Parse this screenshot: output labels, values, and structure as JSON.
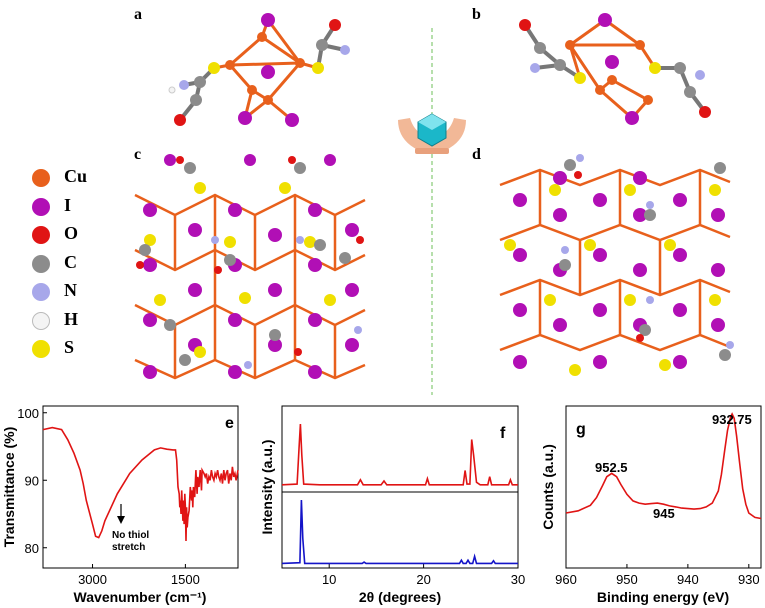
{
  "panels": {
    "a": "a",
    "b": "b",
    "c": "c",
    "d": "d",
    "e": "e",
    "f": "f",
    "g": "g"
  },
  "legend": [
    {
      "label": "Cu",
      "color": "#e8601c"
    },
    {
      "label": "I",
      "color": "#b10fb5"
    },
    {
      "label": "O",
      "color": "#e01414"
    },
    {
      "label": "C",
      "color": "#8c8c8c"
    },
    {
      "label": "N",
      "color": "#a7a7ea"
    },
    {
      "label": "H",
      "color": "#f4f4f4"
    },
    {
      "label": "S",
      "color": "#f0e000"
    }
  ],
  "chart_data": [
    {
      "type": "line",
      "panel": "e",
      "xlabel": "Wavenumber (cm⁻¹)",
      "ylabel": "Transmittance (%)",
      "xlim": [
        3800,
        650
      ],
      "ylim": [
        77,
        101
      ],
      "xticks": [
        3000,
        1500
      ],
      "xtick_labels": [
        "3000",
        "1500"
      ],
      "yticks": [
        80,
        90,
        100
      ],
      "ytick_labels": [
        "80",
        "90",
        "100"
      ],
      "annotation": [
        "No thiol",
        "stretch"
      ],
      "series": [
        {
          "color": "#e01414",
          "x": [
            3800,
            3650,
            3500,
            3400,
            3300,
            3200,
            3150,
            3100,
            3000,
            2950,
            2900,
            2850,
            2800,
            2700,
            2600,
            2400,
            2200,
            2000,
            1900,
            1800,
            1700,
            1660,
            1640,
            1620,
            1600,
            1590,
            1580,
            1570,
            1560,
            1540,
            1530,
            1520,
            1510,
            1500,
            1490,
            1480,
            1470,
            1460,
            1440,
            1420,
            1400,
            1390,
            1380,
            1370,
            1350,
            1330,
            1310,
            1300,
            1280,
            1260,
            1240,
            1230,
            1200,
            1180,
            1160,
            1140,
            1120,
            1100,
            1080,
            1060,
            1040,
            1020,
            1000,
            980,
            960,
            940,
            920,
            900,
            880,
            860,
            840,
            820,
            800,
            780,
            760,
            740,
            720,
            700,
            680,
            650
          ],
          "y": [
            97.5,
            97.8,
            97.5,
            96,
            94,
            91.5,
            89.5,
            87,
            83.5,
            81.7,
            81.5,
            82.5,
            84,
            86,
            88,
            91,
            93,
            94.5,
            94.8,
            94.6,
            94.5,
            94.5,
            93,
            89,
            88,
            86,
            87,
            85,
            88.5,
            84,
            87,
            83.5,
            88,
            86,
            81,
            86,
            83,
            84.5,
            85.5,
            89,
            87,
            88.5,
            86,
            89,
            87.5,
            91.5,
            88,
            90.5,
            89,
            91.5,
            88.5,
            91.5,
            91,
            90.5,
            91,
            89.5,
            90.5,
            90,
            91.5,
            90.5,
            90,
            91,
            90.5,
            91.5,
            90.5,
            90,
            91,
            89.5,
            91.5,
            90,
            91,
            91.5,
            89.5,
            91,
            90,
            92,
            90.5,
            91,
            90,
            91.5
          ]
        }
      ]
    },
    {
      "type": "line",
      "panel": "f",
      "xlabel": "2θ (degrees)",
      "ylabel": "Intensity (a.u.)",
      "xlim": [
        5,
        30
      ],
      "xticks": [
        10,
        20,
        30
      ],
      "xtick_labels": [
        "10",
        "20",
        "30"
      ],
      "series": [
        {
          "color": "#e01414",
          "x": [
            5,
            6.6,
            6.8,
            6.95,
            7.1,
            7.3,
            9,
            11,
            13,
            13.3,
            13.6,
            15.5,
            15.8,
            16.1,
            18,
            20.2,
            20.4,
            20.6,
            22,
            24.2,
            24.4,
            24.6,
            24.9,
            25.1,
            25.3,
            25.6,
            26,
            26.8,
            27,
            27.2,
            28.5,
            29,
            29.2,
            29.4,
            30
          ],
          "y": [
            0.02,
            0.03,
            0.6,
            1.0,
            0.5,
            0.03,
            0.02,
            0.02,
            0.02,
            0.1,
            0.02,
            0.02,
            0.08,
            0.02,
            0.02,
            0.02,
            0.12,
            0.02,
            0.02,
            0.02,
            0.25,
            0.03,
            0.03,
            0.75,
            0.5,
            0.06,
            0.02,
            0.02,
            0.15,
            0.02,
            0.02,
            0.02,
            0.1,
            0.02,
            0.02
          ]
        },
        {
          "color": "#1414c8",
          "x": [
            5,
            6.9,
            7.05,
            7.2,
            7.4,
            10,
            13.5,
            13.7,
            13.9,
            16,
            21,
            23.8,
            24,
            24.2,
            24.5,
            24.7,
            24.9,
            25.2,
            25.4,
            25.6,
            27.2,
            27.4,
            27.6,
            30
          ],
          "y": [
            0.01,
            0.02,
            1.0,
            0.4,
            0.01,
            0.01,
            0.01,
            0.03,
            0.01,
            0.01,
            0.01,
            0.01,
            0.06,
            0.01,
            0.01,
            0.06,
            0.01,
            0.01,
            0.12,
            0.01,
            0.01,
            0.05,
            0.01,
            0.01
          ]
        }
      ]
    },
    {
      "type": "line",
      "panel": "g",
      "xlabel": "Binding energy (eV)",
      "ylabel": "Counts (a.u.)",
      "xlim": [
        960,
        928
      ],
      "xticks": [
        960,
        950,
        940,
        930
      ],
      "xtick_labels": [
        "960",
        "950",
        "940",
        "930"
      ],
      "annotations": [
        "952.5",
        "945",
        "932.75"
      ],
      "series": [
        {
          "color": "#e01414",
          "x": [
            960,
            958,
            956,
            955,
            954,
            953.3,
            952.5,
            951.7,
            951,
            950,
            949,
            948,
            947,
            946,
            945,
            944,
            943,
            942,
            941,
            940,
            939,
            938,
            937,
            936,
            935,
            934.5,
            934,
            933.5,
            933,
            932.75,
            932.4,
            932,
            931.5,
            931,
            930.5,
            930,
            929,
            928
          ],
          "y": [
            0.1,
            0.12,
            0.17,
            0.24,
            0.35,
            0.43,
            0.46,
            0.43,
            0.36,
            0.27,
            0.21,
            0.19,
            0.18,
            0.185,
            0.19,
            0.18,
            0.165,
            0.155,
            0.145,
            0.14,
            0.135,
            0.14,
            0.155,
            0.19,
            0.3,
            0.45,
            0.65,
            0.85,
            0.97,
            1.0,
            0.96,
            0.8,
            0.55,
            0.32,
            0.18,
            0.1,
            0.06,
            0.05
          ]
        }
      ]
    }
  ]
}
